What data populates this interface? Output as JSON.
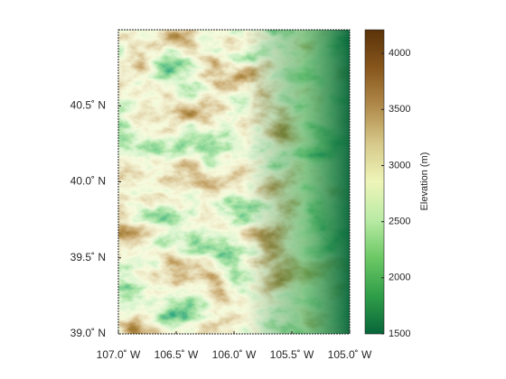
{
  "chart_data": {
    "type": "raster-map",
    "colorbar_label": "Elevation (m)",
    "xlim": [
      -107,
      -105
    ],
    "ylim": [
      39,
      41
    ],
    "xticks": [
      {
        "value": -107,
        "label": "107.0˚ W"
      },
      {
        "value": -106.5,
        "label": "106.5˚ W"
      },
      {
        "value": -106,
        "label": "106.0˚ W"
      },
      {
        "value": -105.5,
        "label": "105.5˚ W"
      },
      {
        "value": -105,
        "label": "105.0˚ W"
      }
    ],
    "yticks": [
      {
        "value": 39,
        "label": "39.0˚ N"
      },
      {
        "value": 39.5,
        "label": "39.5˚ N"
      },
      {
        "value": 40,
        "label": "40.0˚ N"
      },
      {
        "value": 40.5,
        "label": "40.5˚ N"
      }
    ],
    "clim": [
      1500,
      4210
    ],
    "cticks": [
      1500,
      2000,
      2500,
      3000,
      3500,
      4000
    ],
    "colormap": [
      "#08663a",
      "#2f9e48",
      "#6cc865",
      "#b9eba5",
      "#eef5b8",
      "#d6c98a",
      "#b08a4a",
      "#87561c",
      "#5a3309"
    ]
  }
}
